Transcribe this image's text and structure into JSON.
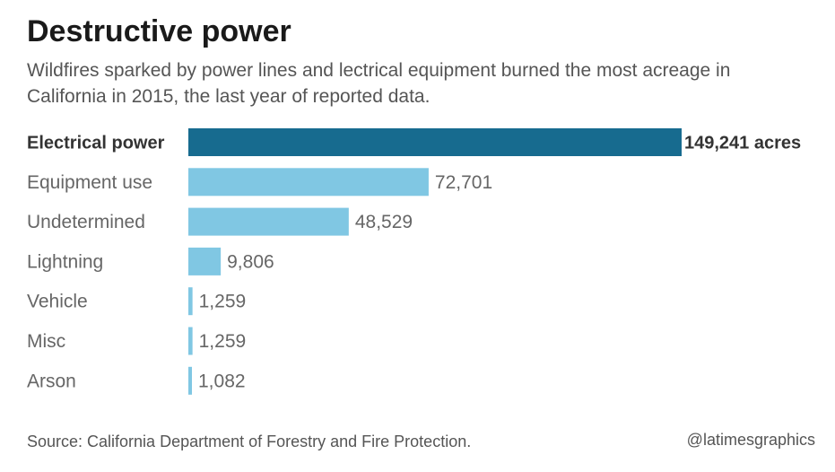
{
  "header": {
    "title": "Destructive power",
    "subtitle": "Wildfires sparked by power lines and lectrical equipment burned the most acreage in California in 2015, the last year of reported data."
  },
  "footer": {
    "source": "Source: California Department of Forestry and Fire Protection.",
    "credit": "@latimesgraphics"
  },
  "colors": {
    "highlight": "#176b8f",
    "bar": "#80c7e3",
    "highlight_text": "#333333",
    "label_text": "#666666"
  },
  "chart_data": {
    "type": "bar",
    "orientation": "horizontal",
    "title": "Destructive power",
    "categories": [
      "Electrical power",
      "Equipment use",
      "Undetermined",
      "Lightning",
      "Vehicle",
      "Misc",
      "Arson"
    ],
    "values": [
      149241,
      72701,
      48529,
      9806,
      1259,
      1259,
      1082
    ],
    "value_labels": [
      "149,241 acres",
      "72,701",
      "48,529",
      "9,806",
      "1,259",
      "1,259",
      "1,082"
    ],
    "highlight_index": 0,
    "xlim": [
      0,
      149241
    ],
    "unit": "acres",
    "grid": false,
    "legend": "none"
  }
}
